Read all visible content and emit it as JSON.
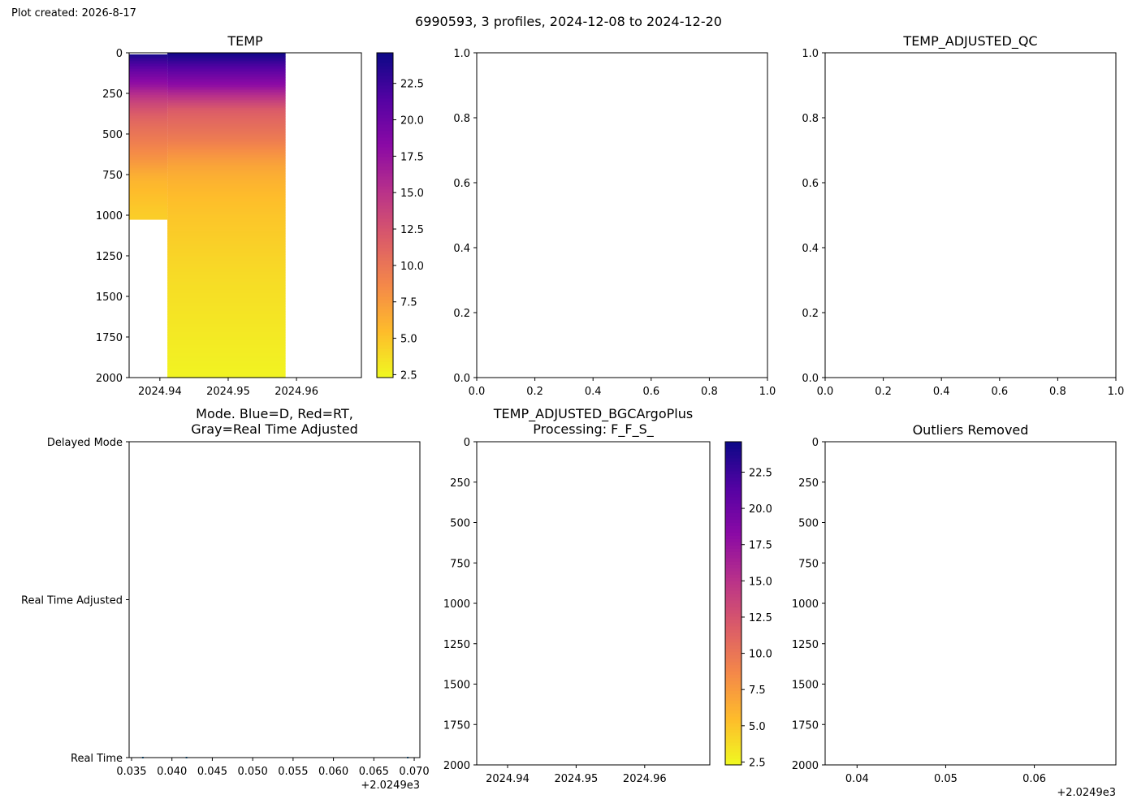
{
  "created_label": "Plot created: 2026-8-17",
  "suptitle": "6990593, 3 profiles, 2024-12-08 to 2024-12-20",
  "chart_data": [
    {
      "id": "temp",
      "type": "heatmap",
      "title": "TEMP",
      "xlim": [
        2024.9355,
        2024.9695
      ],
      "ylim": [
        2000,
        0
      ],
      "x_ticks": [
        "2024.94",
        "2024.95",
        "2024.96"
      ],
      "x_tick_values": [
        2024.94,
        2024.95,
        2024.96
      ],
      "y_ticks": [
        "0",
        "250",
        "500",
        "750",
        "1000",
        "1250",
        "1500",
        "1750",
        "2000"
      ],
      "y_tick_values": [
        0,
        250,
        500,
        750,
        1000,
        1250,
        1500,
        1750,
        2000
      ],
      "colormap": "plasma_r",
      "clim": [
        2.3,
        24.6
      ],
      "profiles": [
        {
          "time_start": 2024.9355,
          "time_end": 2024.9411,
          "depth_top": 10,
          "depth_bottom": 1025,
          "depths": [
            10,
            40,
            80,
            120,
            160,
            200,
            250,
            300,
            350,
            400,
            450,
            500,
            550,
            600,
            650,
            700,
            750,
            800,
            900,
            1000
          ],
          "temps": [
            24.2,
            22.8,
            21.5,
            20.0,
            18.8,
            17.5,
            15.5,
            13.8,
            12.5,
            11.4,
            10.6,
            10.0,
            9.4,
            8.7,
            8.0,
            7.2,
            6.4,
            5.8,
            5.2,
            4.6
          ]
        },
        {
          "time_start": 2024.9411,
          "time_end": 2024.9584,
          "depth_top": 0,
          "depth_bottom": 2000,
          "depths": [
            0,
            40,
            80,
            120,
            160,
            200,
            250,
            300,
            350,
            400,
            450,
            500,
            550,
            600,
            650,
            700,
            750,
            800,
            900,
            1000,
            1100,
            1200,
            1300,
            1400,
            1500,
            1600,
            1700,
            1800,
            1900,
            2000
          ],
          "temps": [
            24.5,
            23.2,
            21.8,
            20.5,
            19.2,
            18.0,
            15.8,
            13.8,
            12.0,
            11.2,
            10.6,
            10.0,
            9.3,
            8.4,
            7.6,
            6.9,
            6.4,
            6.0,
            5.4,
            5.0,
            4.7,
            4.4,
            4.1,
            3.8,
            3.6,
            3.4,
            3.2,
            3.0,
            2.8,
            2.6
          ]
        }
      ],
      "colorbar_ticks": [
        "2.5",
        "5.0",
        "7.5",
        "10.0",
        "12.5",
        "15.0",
        "17.5",
        "20.0",
        "22.5"
      ],
      "colorbar_tick_values": [
        2.5,
        5.0,
        7.5,
        10.0,
        12.5,
        15.0,
        17.5,
        20.0,
        22.5
      ]
    },
    {
      "id": "empty1",
      "type": "scatter",
      "title": "",
      "xlim": [
        0,
        1
      ],
      "ylim": [
        0,
        1
      ],
      "x_ticks": [
        "0.0",
        "0.2",
        "0.4",
        "0.6",
        "0.8",
        "1.0"
      ],
      "x_tick_values": [
        0,
        0.2,
        0.4,
        0.6,
        0.8,
        1.0
      ],
      "y_ticks": [
        "0.0",
        "0.2",
        "0.4",
        "0.6",
        "0.8",
        "1.0"
      ],
      "y_tick_values": [
        0,
        0.2,
        0.4,
        0.6,
        0.8,
        1.0
      ]
    },
    {
      "id": "qc",
      "type": "scatter",
      "title": "TEMP_ADJUSTED_QC",
      "xlim": [
        0,
        1
      ],
      "ylim": [
        0,
        1
      ],
      "x_ticks": [
        "0.0",
        "0.2",
        "0.4",
        "0.6",
        "0.8",
        "1.0"
      ],
      "x_tick_values": [
        0,
        0.2,
        0.4,
        0.6,
        0.8,
        1.0
      ],
      "y_ticks": [
        "0.0",
        "0.2",
        "0.4",
        "0.6",
        "0.8",
        "1.0"
      ],
      "y_tick_values": [
        0,
        0.2,
        0.4,
        0.6,
        0.8,
        1.0
      ]
    },
    {
      "id": "mode",
      "type": "scatter",
      "title_lines": [
        "Mode. Blue=D, Red=RT,",
        "Gray=Real Time Adjusted"
      ],
      "xlim": [
        0.0347,
        0.0707
      ],
      "ylim": [
        0,
        2
      ],
      "x_ticks": [
        "0.035",
        "0.040",
        "0.045",
        "0.050",
        "0.055",
        "0.060",
        "0.065",
        "0.070"
      ],
      "x_tick_values": [
        0.035,
        0.04,
        0.045,
        0.05,
        0.055,
        0.06,
        0.065,
        0.07
      ],
      "x_offset_label": "+2.0249e3",
      "y_ticks": [
        "Real Time",
        "Real Time Adjusted",
        "Delayed Mode"
      ],
      "y_tick_values": [
        0,
        1,
        2
      ],
      "points": [
        {
          "x": 0.0364,
          "y": 0
        },
        {
          "x": 0.0418,
          "y": 0
        },
        {
          "x": 0.0692,
          "y": 0
        }
      ],
      "point_color": "#1f77b4"
    },
    {
      "id": "bgc",
      "type": "heatmap",
      "title_lines": [
        "TEMP_ADJUSTED_BGCArgoPlus",
        "Processing: F_F_S_"
      ],
      "xlim": [
        2024.9355,
        2024.9695
      ],
      "ylim": [
        2000,
        0
      ],
      "x_ticks": [
        "2024.94",
        "2024.95",
        "2024.96"
      ],
      "x_tick_values": [
        2024.94,
        2024.95,
        2024.96
      ],
      "y_ticks": [
        "0",
        "250",
        "500",
        "750",
        "1000",
        "1250",
        "1500",
        "1750",
        "2000"
      ],
      "y_tick_values": [
        0,
        250,
        500,
        750,
        1000,
        1250,
        1500,
        1750,
        2000
      ],
      "colormap": "plasma_r",
      "clim": [
        2.3,
        24.6
      ],
      "colorbar_ticks": [
        "2.5",
        "5.0",
        "7.5",
        "10.0",
        "12.5",
        "15.0",
        "17.5",
        "20.0",
        "22.5"
      ],
      "colorbar_tick_values": [
        2.5,
        5.0,
        7.5,
        10.0,
        12.5,
        15.0,
        17.5,
        20.0,
        22.5
      ]
    },
    {
      "id": "outliers",
      "type": "scatter",
      "title": "Outliers Removed",
      "xlim": [
        0.0364,
        0.0692
      ],
      "ylim": [
        2000,
        0
      ],
      "x_ticks": [
        "0.04",
        "0.05",
        "0.06"
      ],
      "x_tick_values": [
        0.04,
        0.05,
        0.06
      ],
      "x_offset_label": "+2.0249e3",
      "y_ticks": [
        "0",
        "250",
        "500",
        "750",
        "1000",
        "1250",
        "1500",
        "1750",
        "2000"
      ],
      "y_tick_values": [
        0,
        250,
        500,
        750,
        1000,
        1250,
        1500,
        1750,
        2000
      ]
    }
  ]
}
